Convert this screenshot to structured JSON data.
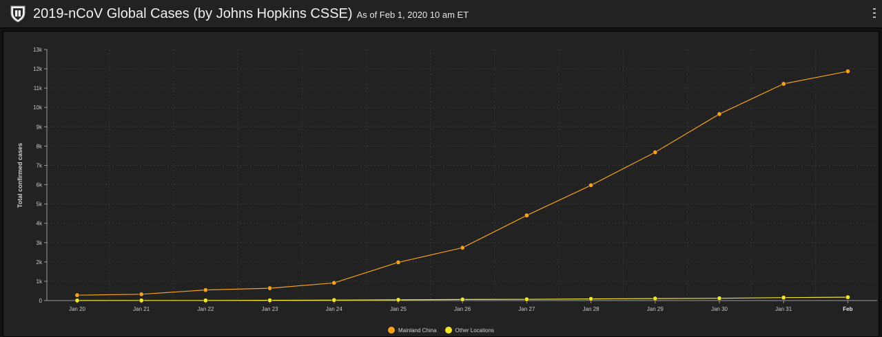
{
  "header": {
    "title": "2019-nCoV Global Cases (by Johns Hopkins CSSE)",
    "subtitle": "As of Feb 1, 2020 10 am ET",
    "logo_icon": "university-shield-icon",
    "menu_icon": "vertical-menu-icon"
  },
  "colors": {
    "background": "#222222",
    "mainland_china": "#f5a11a",
    "other_locations": "#f2e62a"
  },
  "chart_data": {
    "type": "line",
    "title": "",
    "xlabel": "",
    "ylabel": "Total confirmed cases",
    "categories": [
      "Jan 20",
      "Jan 21",
      "Jan 22",
      "Jan 23",
      "Jan 24",
      "Jan 25",
      "Jan 26",
      "Jan 27",
      "Jan 28",
      "Jan 29",
      "Jan 30",
      "Jan 31",
      "Feb"
    ],
    "y_ticks": [
      "0",
      "1k",
      "2k",
      "3k",
      "4k",
      "5k",
      "6k",
      "7k",
      "8k",
      "9k",
      "10k",
      "11k",
      "12k",
      "13k"
    ],
    "ylim": [
      0,
      13000
    ],
    "grid": true,
    "legend_position": "bottom-center",
    "series": [
      {
        "name": "Mainland China",
        "color": "#f5a11a",
        "values": [
          278,
          326,
          547,
          639,
          916,
          1979,
          2737,
          4409,
          5970,
          7678,
          9658,
          11221,
          11871
        ]
      },
      {
        "name": "Other Locations",
        "color": "#f2e62a",
        "values": [
          4,
          6,
          8,
          14,
          25,
          40,
          57,
          64,
          87,
          105,
          118,
          153,
          173
        ]
      }
    ]
  }
}
